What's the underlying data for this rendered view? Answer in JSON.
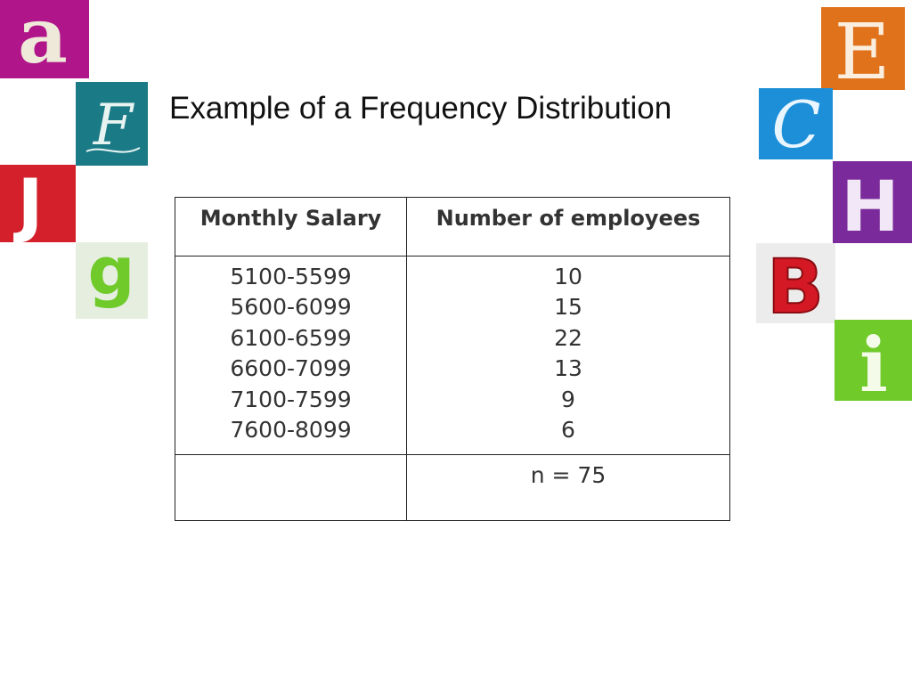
{
  "title": "Example of a Frequency Distribution",
  "table": {
    "headers": [
      "Monthly Salary",
      "Number of employees"
    ],
    "rows": [
      {
        "salary": "5100-5599",
        "count": "10"
      },
      {
        "salary": "5600-6099",
        "count": "15"
      },
      {
        "salary": "6100-6599",
        "count": "22"
      },
      {
        "salary": "6600-7099",
        "count": "13"
      },
      {
        "salary": "7100-7599",
        "count": "9"
      },
      {
        "salary": "7600-8099",
        "count": "6"
      }
    ],
    "footer_left": "",
    "footer_right": "n = 75"
  },
  "decor": {
    "letters": [
      "a",
      "F",
      "J",
      "g",
      "E",
      "C",
      "H",
      "B",
      "i"
    ],
    "colors": {
      "magenta": "#b0168a",
      "teal": "#1a7a86",
      "red": "#d4202a",
      "green_pale": "#e6eee0",
      "orange": "#e0721c",
      "blue": "#1c8fd8",
      "purple": "#7a2a9a",
      "lime": "#6fca2a"
    }
  }
}
